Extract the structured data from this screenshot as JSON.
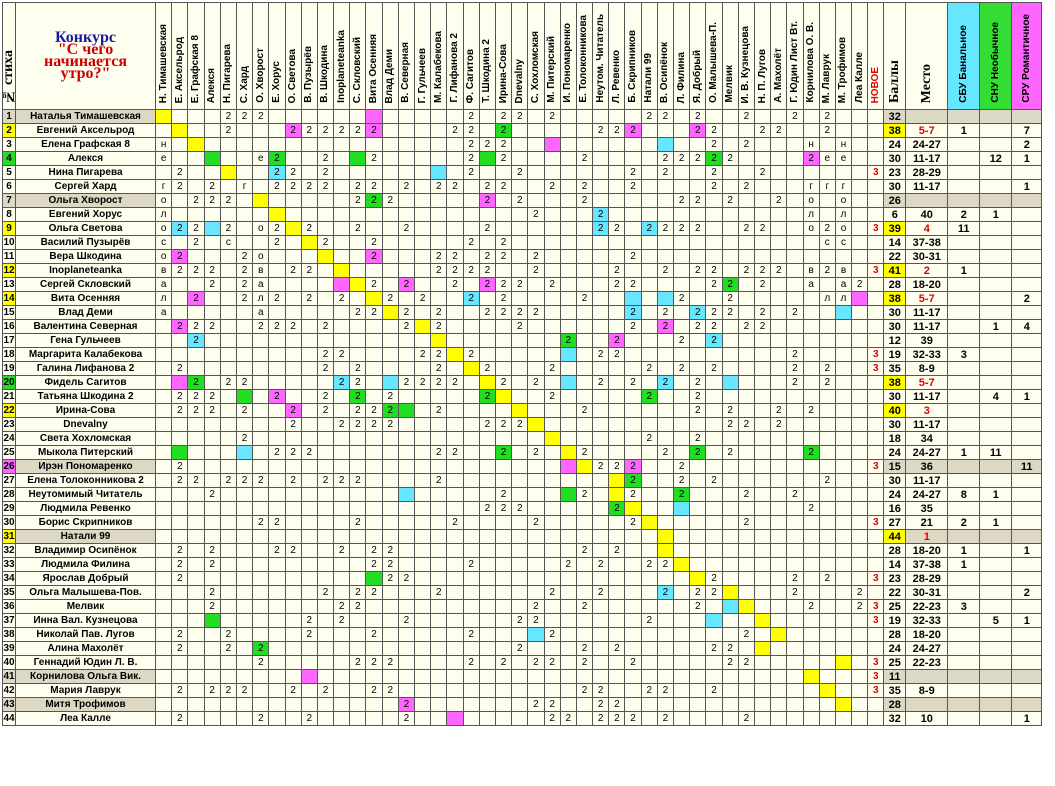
{
  "title": {
    "line1": "Конкурс",
    "line2": "\"С чего",
    "line3": "начинается",
    "line4": "утро?\""
  },
  "headers": {
    "num": "№ стиха",
    "jurors": [
      "Н. Тимашевская",
      "Е. Аксельрод",
      "Е. Графская 8",
      "Алекся",
      "Н. Пигарева",
      "С. Хард",
      "О. Хворост",
      "Е. Хорус",
      "О. Светова",
      "В. Пузырёв",
      "В. Шкодина",
      "Inoplaneteanka",
      "С. Скловский",
      "Вита Осенняя",
      "Влад Деми",
      "В. Северная",
      "Г. Гульчеев",
      "М. Калабекова",
      "Г. Лифанова 2",
      "Ф. Сагитов",
      "Т. Шкодина 2",
      "Ирина-Сова",
      "Dnevalny",
      "С. Хохломская",
      "М. Питерский",
      "И. Пономаренко",
      "Е. Толоконникова",
      "Неутом. Читатель",
      "Л. Ревенко",
      "Б. Скрипников",
      "Натали 99",
      "В. Осипёнок",
      "Л. Филина",
      "Я. Добрый",
      "О. Малышева-П.",
      "Мелвик",
      "И. В. Кузнецова",
      "Н. П. Лугов",
      "А. Махолёт",
      "Г. Юдин Лист Вт.",
      "Корнилова О. В.",
      "М. Лаврук",
      "М. Трофимов",
      "Леа Калле"
    ],
    "new": "НОВОЕ",
    "balls": "Баллы",
    "place": "Место",
    "sbu": "СБУ Банальное",
    "snu": "СНУ Необычное",
    "sru": "СРУ Романтичное"
  },
  "colors": {
    "yellow": "#ffff00",
    "green": "#22dd22",
    "cyan": "#66e6ff",
    "magenta": "#ff66ff",
    "tan": "#ddd8c4",
    "red": "#e00000"
  },
  "rows": [
    {
      "n": "1",
      "name": "Наталья Тимашевская",
      "cells": "y,,,,2,2,2,,,,,,,m,,,,,,2,,2,2,,2,,,,,,2,2,,2,,,2,,,2,,2,,,",
      "new": "",
      "balls": "32",
      "place": "",
      "sbu": "",
      "snu": "",
      "sru": ""
    },
    {
      "n": "2",
      "name": "Евгений Аксельрод",
      "cells": ",y,,,2,,,,m2,2,2,2,2,m2,,,,,2,2,,g2,,,,,,2,2,m2,,,,m2,2,,,2,2,,,2,,,2",
      "new": "",
      "balls": "38",
      "place": "5-7",
      "sbu": "1",
      "snu": "",
      "sru": "7"
    },
    {
      "n": "3",
      "name": "Елена Графская 8",
      "cells": "н,,y,,,,,,,,,,,,,,,,,2,2,2,,,m,,,,,,,c,,,2,,2,,,,н,,н",
      "new": "",
      "balls": "24",
      "place": "24-27",
      "sbu": "",
      "snu": "",
      "sru": "2"
    },
    {
      "n": "4",
      "name": "Алекся",
      "cells": "е,,,g,,,е,g2,,,2,,g,2,,,,,,2,g,2,,,,,2,,,,,2,2,2,g2,2,,,,,m2,е,е",
      "new": "",
      "balls": "30",
      "place": "11-17",
      "sbu": "",
      "snu": "12",
      "sru": "1"
    },
    {
      "n": "5",
      "name": "Нина Пигарева",
      "cells": ",2,,,y,,,c2,2,,2,,,,,,,c,,2,,,2,,,,,,,2,,2,,,2,,,2,,,,,",
      "new": "3",
      "balls": "23",
      "place": "28-29",
      "sbu": "",
      "snu": "",
      "sru": ""
    },
    {
      "n": "6",
      "name": "Сергей Хард",
      "cells": "г,2,,2,,г,,2,2,2,2,,2,2,,2,,2,2,,2,2,,,2,,2,,,2,,,,,2,,2,,,,г,г,г",
      "new": "",
      "balls": "30",
      "place": "11-17",
      "sbu": "",
      "snu": "",
      "sru": "1"
    },
    {
      "n": "7",
      "name": "Ольга Хворост",
      "cells": "о,,2,2,2,,y,,,,,,2,g2,2,,,,,,m2,,2,,,,2,,,,,,2,2,,2,,,2,,о,,о",
      "new": "",
      "balls": "26",
      "place": "",
      "sbu": "",
      "snu": "",
      "sru": ""
    },
    {
      "n": "8",
      "name": "Евгений Хорус",
      "cells": "л,,,,,,,y,,,,,,,,,,,,,,,,2,,,,c2,,,,,,,,,,,,,л,,л",
      "new": "",
      "balls": "6",
      "place": "40",
      "sbu": "2",
      "snu": "1",
      "sru": ""
    },
    {
      "n": "9",
      "name": "Ольга Светова",
      "cells": "о,c2,2,c,2,,о,2,y,2,,,2,,,2,,,,,2,,,,,,,c2,2,,c2,2,2,2,,,2,2,,,о,2,о",
      "new": "3",
      "balls": "39",
      "place": "4",
      "sbu": "11",
      "snu": "",
      "sru": ""
    },
    {
      "n": "10",
      "name": "Василий Пузырёв",
      "cells": "с,,2,,с,,,2,,y,2,,,2,,,,,,2,,2,,,,,,,,,,,,,,,,,,,,с,с",
      "new": "",
      "balls": "14",
      "place": "37-38",
      "sbu": "",
      "snu": "",
      "sru": ""
    },
    {
      "n": "11",
      "name": "Вера Шкодина",
      "cells": "о,m2,,,,2,о,,,,y,,,m2,,,,2,2,,2,2,,2,,,,,,2,,,,,,,,,,,,,,",
      "new": "",
      "balls": "22",
      "place": "30-31",
      "sbu": "",
      "snu": "",
      "sru": ""
    },
    {
      "n": "12",
      "name": "Inoplaneteanka",
      "cells": "в,2,2,2,,2,в,,2,2,,y,,,,,,2,2,2,2,,,2,,,,,2,,,2,,2,2,,2,2,2,,в,2,в",
      "new": "3",
      "balls": "41",
      "place": "2",
      "sbu": "1",
      "snu": "",
      "sru": ""
    },
    {
      "n": "13",
      "name": "Сергей Скловский",
      "cells": "а,,,2,,2,а,,,,,m,y,2,,m2,,,2,,m2,2,2,,2,,,,2,2,,,,,2,g2,,2,,,а,,а,2",
      "new": "",
      "balls": "28",
      "place": "18-20",
      "sbu": "",
      "snu": "",
      "sru": ""
    },
    {
      "n": "14",
      "name": "Вита Осенняя",
      "cells": "л,,m2,,,2,л,2,,2,,2,,y,2,,2,,,c2,,2,,,,,2,,,c,,c,2,,,2,,,,,,л,л,m",
      "new": "",
      "balls": "38",
      "place": "5-7",
      "sbu": "",
      "snu": "",
      "sru": "2"
    },
    {
      "n": "15",
      "name": "Влад Деми",
      "cells": "а,,,,,,а,,,,,,2,2,y,2,,2,,,2,2,2,2,,,,,,c2,,2,,c2,2,2,,2,,2,,,c",
      "new": "",
      "balls": "30",
      "place": "11-17",
      "sbu": "",
      "snu": "",
      "sru": ""
    },
    {
      "n": "16",
      "name": "Валентина Северная",
      "cells": ",m2,2,2,,,2,2,2,,2,,,,,2,y,2,,,,,2,,,,,,,2,,m2,,2,2,,2,2,,,,,,",
      "new": "",
      "balls": "30",
      "place": "11-17",
      "sbu": "",
      "snu": "1",
      "sru": "4"
    },
    {
      "n": "17",
      "name": "Гена Гульчеев",
      "cells": ",,c2,,,,,,,,,,,,,,,y,,,,,,,,g2,,,m2,,,,2,,c2,,,,,,,,,,",
      "new": "",
      "balls": "12",
      "place": "39",
      "sbu": "",
      "snu": "",
      "sru": ""
    },
    {
      "n": "18",
      "name": "Маргарита Калабекова",
      "cells": ",,,,,,,,,,2,2,,,,,2,2,y,2,,,,,,c,,2,2,,,,,,,,,,,2,,,,",
      "new": "3",
      "balls": "19",
      "place": "32-33",
      "sbu": "3",
      "snu": "",
      "sru": ""
    },
    {
      "n": "19",
      "name": "Галина Лифанова 2",
      "cells": ",2,,,,,,,,,2,,2,,,,,2,,y,2,,,,2,,,,,,2,,2,,2,,,,,2,,2,,",
      "new": "3",
      "balls": "35",
      "place": "8-9",
      "sbu": "",
      "snu": "",
      "sru": ""
    },
    {
      "n": "20",
      "name": "Фидель Сагитов",
      "cells": ",m,g2,,2,2,,,,,,c2,2,,c,2,2,2,2,,y,2,,2,,c,,2,,2,,c2,,2,,c,,,,2,,2,,,2",
      "new": "",
      "balls": "38",
      "place": "5-7",
      "sbu": "",
      "snu": "",
      "sru": ""
    },
    {
      "n": "21",
      "name": "Татьяна Шкодина 2",
      "cells": ",2,2,2,,g,,m2,,,2,,g2,,2,,,,,,g2,y,,,2,,,,,,g2,,,2,,,,,,,,,,,c2",
      "new": "",
      "balls": "30",
      "place": "11-17",
      "sbu": "",
      "snu": "4",
      "sru": "1"
    },
    {
      "n": "22",
      "name": "Ирина-Сова",
      "cells": ",2,2,2,,2,,,m2,,2,,2,2,g2,g,,2,,,,,y,,,,2,,,,,,,2,,2,,,2,,2,,,",
      "new": "",
      "balls": "40",
      "place": "3",
      "sbu": "",
      "snu": "",
      "sru": ""
    },
    {
      "n": "23",
      "name": "Dnevalny",
      "cells": ",,,,,,,,2,,,2,2,2,2,,,,,,2,2,2,y,,,,,,,,,,,,2,2,,2,,,,,,",
      "new": "",
      "balls": "30",
      "place": "11-17",
      "sbu": "",
      "snu": "",
      "sru": ""
    },
    {
      "n": "24",
      "name": "Света Хохломская",
      "cells": ",,,,,2,,,,,,,,,,,,,,,,,,,y,,,,,,2,,,2,,,,,,,,,,",
      "new": "",
      "balls": "18",
      "place": "34",
      "sbu": "",
      "snu": "",
      "sru": ""
    },
    {
      "n": "25",
      "name": "Мыкола Питерский",
      "cells": ",g,,,,c,,2,2,2,,,,,,,,2,2,,,g2,,2,,y,2,,,,,2,,g2,,2,,,,,g2,,,,",
      "new": "",
      "balls": "24",
      "place": "24-27",
      "sbu": "1",
      "snu": "11",
      "sru": ""
    },
    {
      "n": "26",
      "name": "Ирэн Пономаренко",
      "cells": ",2,,,,,,,,,,,,,,,,,,,,,,,,m,y,2,2,m2,,,2,,,,,,,,,,,,2",
      "new": "3",
      "balls": "15",
      "place": "36",
      "sbu": "",
      "snu": "",
      "sru": "11"
    },
    {
      "n": "27",
      "name": "Елена Толоконникова 2",
      "cells": ",2,2,,2,2,2,,2,,2,2,2,,,,,2,,,,,,,,,,,y,g2,,,2,,2,,,,,,,2,,,,",
      "new": "",
      "balls": "30",
      "place": "11-17",
      "sbu": "",
      "snu": "",
      "sru": ""
    },
    {
      "n": "28",
      "name": "Неутомимый Читатель",
      "cells": ",,,2,,,,,,,,,,,,c,,,,,,2,,,,g,2,,y,2,,,g2,,,,2,,,2,,,,,",
      "new": "",
      "balls": "24",
      "place": "24-27",
      "sbu": "8",
      "snu": "1",
      "sru": ""
    },
    {
      "n": "29",
      "name": "Людмила Ревенко",
      "cells": ",,,,,,,,,,,,,,,,,,,,2,2,2,,,,,,g2,y,,,c,,,,,,,,2,,,,",
      "new": "",
      "balls": "16",
      "place": "35",
      "sbu": "",
      "snu": "",
      "sru": ""
    },
    {
      "n": "30",
      "name": "Борис Скрипников",
      "cells": ",,,,,,2,2,,,,,2,,,,,,2,,,,,2,,,,,,2,y,,,,,,2,,,,,,,,2",
      "new": "3",
      "balls": "27",
      "place": "21",
      "sbu": "2",
      "snu": "1",
      "sru": ""
    },
    {
      "n": "31",
      "name": "Натали 99",
      "cells": ",,,,,,,,,,,,,,,,,,,,,,,,,,,,,,,y,,,,,,,,,,,,,",
      "new": "",
      "balls": "44",
      "place": "1",
      "sbu": "",
      "snu": "",
      "sru": ""
    },
    {
      "n": "32",
      "name": "Владимир Осипёнок",
      "cells": ",2,,2,,,,2,2,,,2,,2,2,,,,,,,,,,,,2,,2,,,y,,,,,,,,,,,,,",
      "new": "",
      "balls": "28",
      "place": "18-20",
      "sbu": "1",
      "snu": "",
      "sru": "1"
    },
    {
      "n": "33",
      "name": "Людмила Филина",
      "cells": ",2,,2,,,,,,,,,,2,2,,,,,2,,,,,,2,,2,,,2,2,y,,,,,,,,,,,,",
      "new": "",
      "balls": "14",
      "place": "37-38",
      "sbu": "1",
      "snu": "",
      "sru": ""
    },
    {
      "n": "34",
      "name": "Ярослав Добрый",
      "cells": ",2,,,,,,,,,,,,g,2,2,,,,,,,,,,,,,,,,,,y,2,,,,,2,,2,,,",
      "new": "3",
      "balls": "23",
      "place": "28-29",
      "sbu": "",
      "snu": "",
      "sru": ""
    },
    {
      "n": "35",
      "name": "Ольга Малышева-Пов.",
      "cells": ",,,2,,,,,,,2,,2,2,,,,2,,,,,,,2,,,2,,,,c2,,2,2,y,,,,2,,,,2",
      "new": "",
      "balls": "22",
      "place": "30-31",
      "sbu": "",
      "snu": "",
      "sru": "2"
    },
    {
      "n": "36",
      "name": "Мелвик",
      "cells": ",,,2,,,,,,,,2,2,,,,,,,,,,,2,,,2,,,,,,,2,,c,y,,,,2,,,2",
      "new": "3",
      "balls": "25",
      "place": "22-23",
      "sbu": "3",
      "snu": "",
      "sru": ""
    },
    {
      "n": "37",
      "name": "Инна Вал. Кузнецова",
      "cells": ",,,g,,,,,,2,,2,,,,2,,,,,,,2,2,,,,,,,2,,,,c,,,y,,,,,,,",
      "new": "3",
      "balls": "19",
      "place": "32-33",
      "sbu": "",
      "snu": "5",
      "sru": "1"
    },
    {
      "n": "38",
      "name": "Николай Пав. Лугов",
      "cells": ",2,,,2,,,,,2,,,,2,,,,,,2,,,,c,2,,,,,,,,,,,,2,,y,,,,,,",
      "new": "",
      "balls": "28",
      "place": "18-20",
      "sbu": "",
      "snu": "",
      "sru": ""
    },
    {
      "n": "39",
      "name": "Алина Махолёт",
      "cells": ",2,,,2,,g2,,,,,,,,,,,,,,,,2,,,,2,,2,,,,,,2,2,,y,,,,,,,",
      "new": "",
      "balls": "24",
      "place": "24-27",
      "sbu": "",
      "snu": "",
      "sru": ""
    },
    {
      "n": "40",
      "name": "Геннадий Юдин Л. В.",
      "cells": ",,,,,,2,,,,,,2,2,2,,,,,2,,2,,2,2,,2,,,2,,,,,,2,2,,,,,,y,,,,2",
      "new": "3",
      "balls": "25",
      "place": "22-23",
      "sbu": "",
      "snu": "",
      "sru": ""
    },
    {
      "n": "41",
      "name": "Корнилова Ольга Вик.",
      "cells": ",,,,,,,,,m,,,,,,,,,,,,,,,,,,,,,,,,,,,,,,,y,,,,",
      "new": "3",
      "balls": "11",
      "place": "",
      "sbu": "",
      "snu": "",
      "sru": ""
    },
    {
      "n": "42",
      "name": "Мария Лаврук",
      "cells": ",2,,2,2,2,,,2,,2,,,2,2,,,,,,,,,,,,2,2,,,2,2,,,2,,,,,,,y,,,,",
      "new": "3",
      "balls": "35",
      "place": "8-9",
      "sbu": "",
      "snu": "",
      "sru": ""
    },
    {
      "n": "43",
      "name": "Митя Трофимов",
      "cells": ",,,,,,,,,,,,,,,m2,,,,,,,,2,2,,,2,2,,,,,,,,,,,,,,y,,,",
      "new": "",
      "balls": "28",
      "place": "",
      "sbu": "",
      "snu": "",
      "sru": ""
    },
    {
      "n": "44",
      "name": "Леа Калле",
      "cells": ",2,,,,,2,,,2,,,,,,2,,,m,,,,,,2,2,,2,2,2,,2,,,,,2,,,,,,,,y",
      "new": "",
      "balls": "32",
      "place": "10",
      "sbu": "",
      "snu": "",
      "sru": "1"
    }
  ],
  "tan_rows": [
    "1",
    "7",
    "26",
    "31",
    "41",
    "43"
  ],
  "green_num_rows": [
    "4",
    "20"
  ],
  "yellow_num_rows": [
    "2",
    "9",
    "12",
    "14",
    "22",
    "31"
  ],
  "magenta_num_rows": [
    "26"
  ],
  "yellow_ball_rows": [
    "2",
    "9",
    "12",
    "14",
    "20",
    "22",
    "31"
  ],
  "red_place_rows": [
    "2",
    "9",
    "12",
    "14",
    "20",
    "22",
    "31"
  ]
}
